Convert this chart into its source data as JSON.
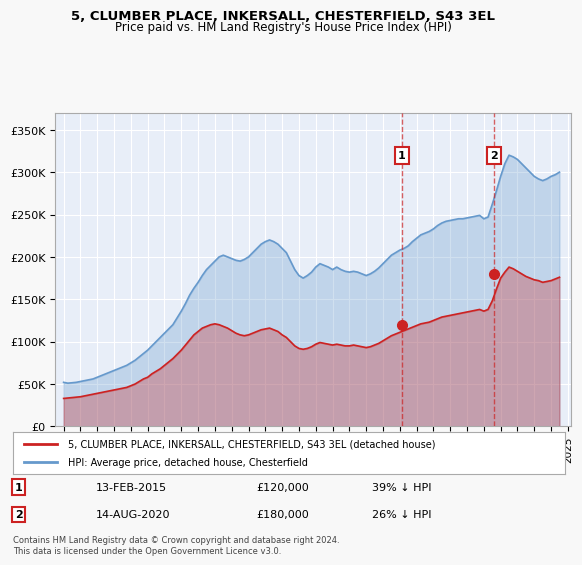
{
  "title": "5, CLUMBER PLACE, INKERSALL, CHESTERFIELD, S43 3EL",
  "subtitle": "Price paid vs. HM Land Registry's House Price Index (HPI)",
  "hpi_color": "#6699cc",
  "price_color": "#cc2222",
  "background_color": "#f0f4ff",
  "plot_bg": "#e8eef8",
  "ylim": [
    0,
    370000
  ],
  "yticks": [
    0,
    50000,
    100000,
    150000,
    200000,
    250000,
    300000,
    350000
  ],
  "ytick_labels": [
    "£0",
    "£50K",
    "£100K",
    "£150K",
    "£200K",
    "£250K",
    "£300K",
    "£350K"
  ],
  "transaction1": {
    "date": 2015.12,
    "price": 120000,
    "label": "1",
    "text": "13-FEB-2015",
    "amount": "£120,000",
    "pct": "39% ↓ HPI"
  },
  "transaction2": {
    "date": 2020.62,
    "price": 180000,
    "label": "2",
    "text": "14-AUG-2020",
    "amount": "£180,000",
    "pct": "26% ↓ HPI"
  },
  "legend_label1": "5, CLUMBER PLACE, INKERSALL, CHESTERFIELD, S43 3EL (detached house)",
  "legend_label2": "HPI: Average price, detached house, Chesterfield",
  "footnote": "Contains HM Land Registry data © Crown copyright and database right 2024.\nThis data is licensed under the Open Government Licence v3.0.",
  "hpi_data_x": [
    1995.0,
    1995.25,
    1995.5,
    1995.75,
    1996.0,
    1996.25,
    1996.5,
    1996.75,
    1997.0,
    1997.25,
    1997.5,
    1997.75,
    1998.0,
    1998.25,
    1998.5,
    1998.75,
    1999.0,
    1999.25,
    1999.5,
    1999.75,
    2000.0,
    2000.25,
    2000.5,
    2000.75,
    2001.0,
    2001.25,
    2001.5,
    2001.75,
    2002.0,
    2002.25,
    2002.5,
    2002.75,
    2003.0,
    2003.25,
    2003.5,
    2003.75,
    2004.0,
    2004.25,
    2004.5,
    2004.75,
    2005.0,
    2005.25,
    2005.5,
    2005.75,
    2006.0,
    2006.25,
    2006.5,
    2006.75,
    2007.0,
    2007.25,
    2007.5,
    2007.75,
    2008.0,
    2008.25,
    2008.5,
    2008.75,
    2009.0,
    2009.25,
    2009.5,
    2009.75,
    2010.0,
    2010.25,
    2010.5,
    2010.75,
    2011.0,
    2011.25,
    2011.5,
    2011.75,
    2012.0,
    2012.25,
    2012.5,
    2012.75,
    2013.0,
    2013.25,
    2013.5,
    2013.75,
    2014.0,
    2014.25,
    2014.5,
    2014.75,
    2015.0,
    2015.25,
    2015.5,
    2015.75,
    2016.0,
    2016.25,
    2016.5,
    2016.75,
    2017.0,
    2017.25,
    2017.5,
    2017.75,
    2018.0,
    2018.25,
    2018.5,
    2018.75,
    2019.0,
    2019.25,
    2019.5,
    2019.75,
    2020.0,
    2020.25,
    2020.5,
    2020.75,
    2021.0,
    2021.25,
    2021.5,
    2021.75,
    2022.0,
    2022.25,
    2022.5,
    2022.75,
    2023.0,
    2023.25,
    2023.5,
    2023.75,
    2024.0,
    2024.25,
    2024.5
  ],
  "hpi_data_y": [
    52000,
    51000,
    51500,
    52000,
    53000,
    54000,
    55000,
    56000,
    58000,
    60000,
    62000,
    64000,
    66000,
    68000,
    70000,
    72000,
    75000,
    78000,
    82000,
    86000,
    90000,
    95000,
    100000,
    105000,
    110000,
    115000,
    120000,
    128000,
    136000,
    145000,
    155000,
    163000,
    170000,
    178000,
    185000,
    190000,
    195000,
    200000,
    202000,
    200000,
    198000,
    196000,
    195000,
    197000,
    200000,
    205000,
    210000,
    215000,
    218000,
    220000,
    218000,
    215000,
    210000,
    205000,
    195000,
    185000,
    178000,
    175000,
    178000,
    182000,
    188000,
    192000,
    190000,
    188000,
    185000,
    188000,
    185000,
    183000,
    182000,
    183000,
    182000,
    180000,
    178000,
    180000,
    183000,
    187000,
    192000,
    197000,
    202000,
    205000,
    208000,
    210000,
    213000,
    218000,
    222000,
    226000,
    228000,
    230000,
    233000,
    237000,
    240000,
    242000,
    243000,
    244000,
    245000,
    245000,
    246000,
    247000,
    248000,
    249000,
    245000,
    247000,
    262000,
    278000,
    295000,
    310000,
    320000,
    318000,
    315000,
    310000,
    305000,
    300000,
    295000,
    292000,
    290000,
    292000,
    295000,
    297000,
    300000
  ],
  "price_data_x": [
    1995.0,
    1995.25,
    1995.5,
    1995.75,
    1996.0,
    1996.25,
    1996.5,
    1996.75,
    1997.0,
    1997.25,
    1997.5,
    1997.75,
    1998.0,
    1998.25,
    1998.5,
    1998.75,
    1999.0,
    1999.25,
    1999.5,
    1999.75,
    2000.0,
    2000.25,
    2000.5,
    2000.75,
    2001.0,
    2001.25,
    2001.5,
    2001.75,
    2002.0,
    2002.25,
    2002.5,
    2002.75,
    2003.0,
    2003.25,
    2003.5,
    2003.75,
    2004.0,
    2004.25,
    2004.5,
    2004.75,
    2005.0,
    2005.25,
    2005.5,
    2005.75,
    2006.0,
    2006.25,
    2006.5,
    2006.75,
    2007.0,
    2007.25,
    2007.5,
    2007.75,
    2008.0,
    2008.25,
    2008.5,
    2008.75,
    2009.0,
    2009.25,
    2009.5,
    2009.75,
    2010.0,
    2010.25,
    2010.5,
    2010.75,
    2011.0,
    2011.25,
    2011.5,
    2011.75,
    2012.0,
    2012.25,
    2012.5,
    2012.75,
    2013.0,
    2013.25,
    2013.5,
    2013.75,
    2014.0,
    2014.25,
    2014.5,
    2014.75,
    2015.0,
    2015.25,
    2015.5,
    2015.75,
    2016.0,
    2016.25,
    2016.5,
    2016.75,
    2017.0,
    2017.25,
    2017.5,
    2017.75,
    2018.0,
    2018.25,
    2018.5,
    2018.75,
    2019.0,
    2019.25,
    2019.5,
    2019.75,
    2020.0,
    2020.25,
    2020.5,
    2020.75,
    2021.0,
    2021.25,
    2021.5,
    2021.75,
    2022.0,
    2022.25,
    2022.5,
    2022.75,
    2023.0,
    2023.25,
    2023.5,
    2023.75,
    2024.0,
    2024.25,
    2024.5
  ],
  "price_data_y": [
    33000,
    33500,
    34000,
    34500,
    35000,
    36000,
    37000,
    38000,
    39000,
    40000,
    41000,
    42000,
    43000,
    44000,
    45000,
    46000,
    48000,
    50000,
    53000,
    56000,
    58000,
    62000,
    65000,
    68000,
    72000,
    76000,
    80000,
    85000,
    90000,
    96000,
    102000,
    108000,
    112000,
    116000,
    118000,
    120000,
    121000,
    120000,
    118000,
    116000,
    113000,
    110000,
    108000,
    107000,
    108000,
    110000,
    112000,
    114000,
    115000,
    116000,
    114000,
    112000,
    108000,
    105000,
    100000,
    95000,
    92000,
    91000,
    92000,
    94000,
    97000,
    99000,
    98000,
    97000,
    96000,
    97000,
    96000,
    95000,
    95000,
    96000,
    95000,
    94000,
    93000,
    94000,
    96000,
    98000,
    101000,
    104000,
    107000,
    109000,
    111000,
    113000,
    115000,
    117000,
    119000,
    121000,
    122000,
    123000,
    125000,
    127000,
    129000,
    130000,
    131000,
    132000,
    133000,
    134000,
    135000,
    136000,
    137000,
    138000,
    136000,
    138000,
    148000,
    162000,
    175000,
    182000,
    188000,
    186000,
    183000,
    180000,
    177000,
    175000,
    173000,
    172000,
    170000,
    171000,
    172000,
    174000,
    176000
  ],
  "xlim": [
    1994.5,
    2025.2
  ],
  "xticks": [
    1995,
    1996,
    1997,
    1998,
    1999,
    2000,
    2001,
    2002,
    2003,
    2004,
    2005,
    2006,
    2007,
    2008,
    2009,
    2010,
    2011,
    2012,
    2013,
    2014,
    2015,
    2016,
    2017,
    2018,
    2019,
    2020,
    2021,
    2022,
    2023,
    2024,
    2025
  ]
}
